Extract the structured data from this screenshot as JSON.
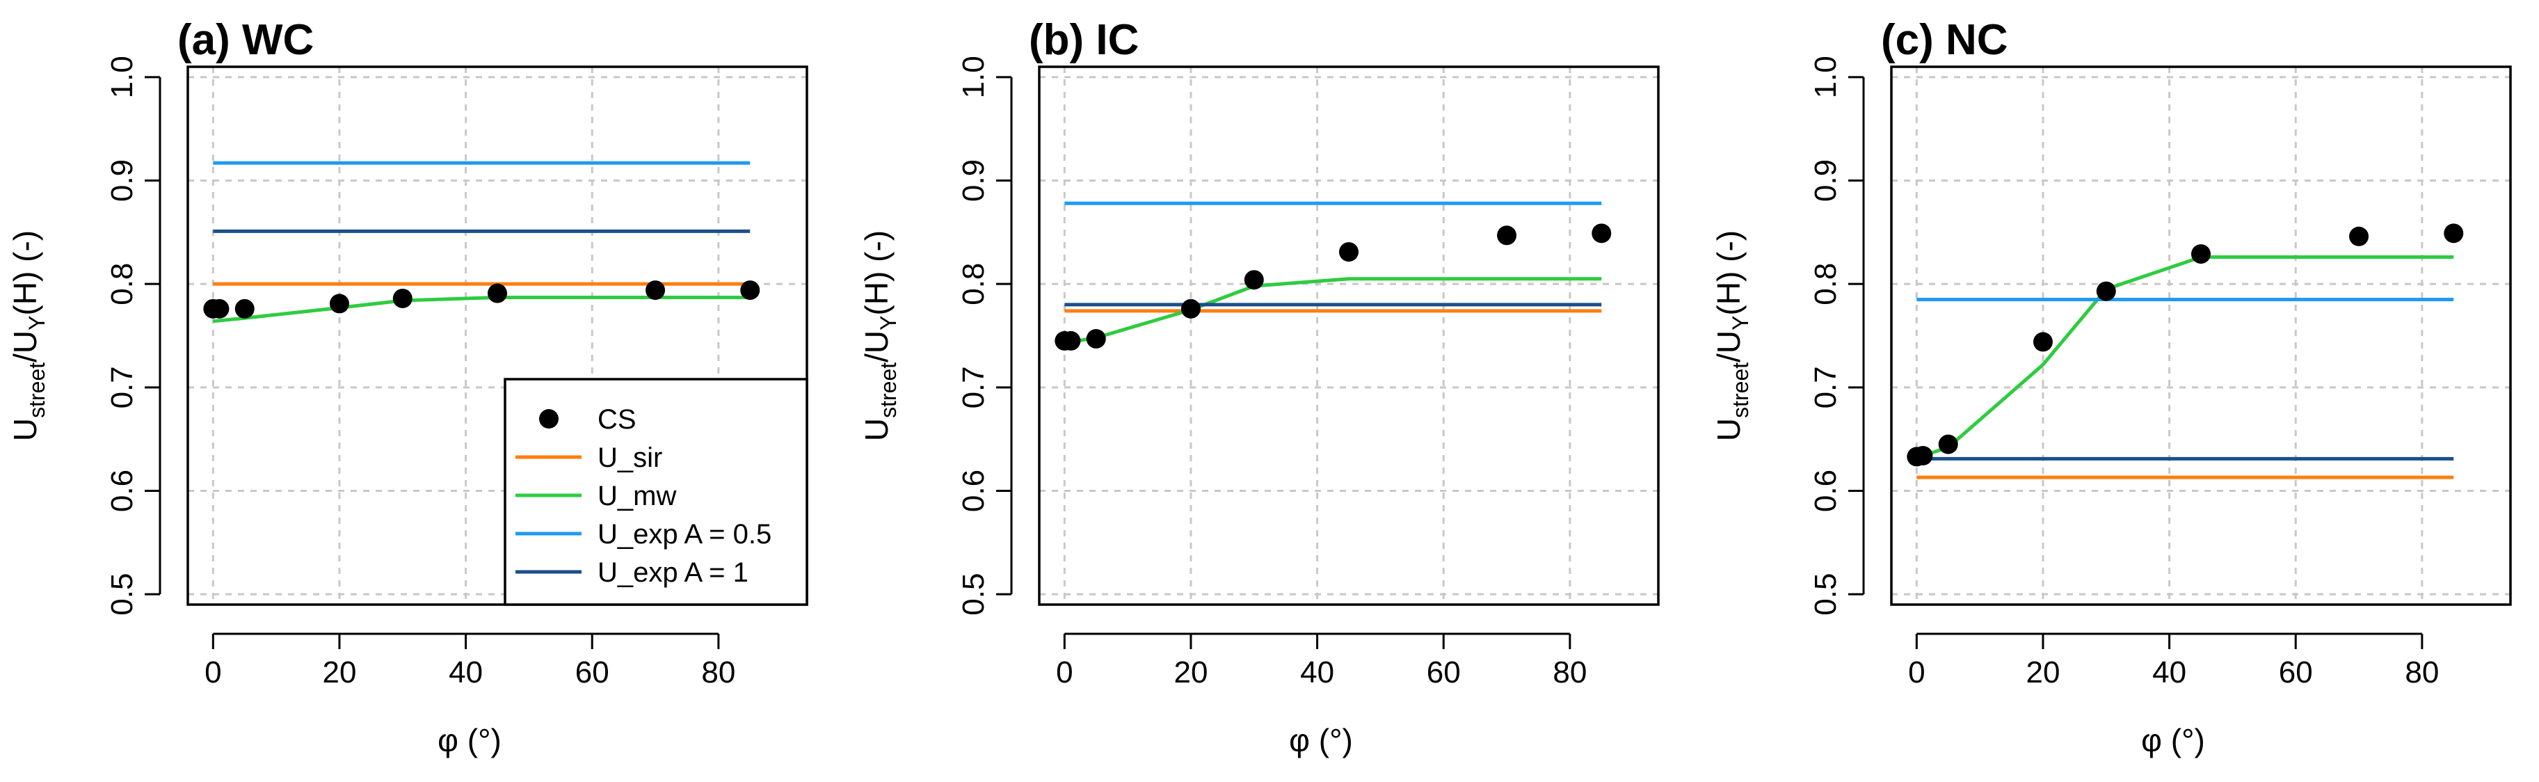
{
  "chart_data": [
    {
      "type": "line",
      "title": "(a) WC",
      "xlabel": "φ (°)",
      "ylabel_main": "U",
      "ylabel_sub": "street",
      "ylabel_mid": "/U",
      "ylabel_sub2": "Y",
      "ylabel_tail": "(H) (-)",
      "xlim": [
        -4,
        94
      ],
      "ylim": [
        0.49,
        1.01
      ],
      "xticks": [
        "0",
        "20",
        "40",
        "60",
        "80"
      ],
      "yticks": [
        "0.5",
        "0.6",
        "0.7",
        "0.8",
        "0.9",
        "1.0"
      ],
      "grid": true,
      "legend_position": "bottom-right",
      "series": [
        {
          "name": "CS",
          "kind": "points",
          "color": "#000000",
          "x": [
            0,
            1,
            5,
            20,
            30,
            45,
            70,
            85
          ],
          "y": [
            0.776,
            0.776,
            0.776,
            0.781,
            0.786,
            0.791,
            0.794,
            0.794
          ]
        },
        {
          "name": "U_sir",
          "kind": "line",
          "color": "#ff7f0e",
          "x": [
            0,
            85
          ],
          "y": [
            0.8,
            0.8
          ]
        },
        {
          "name": "U_mw",
          "kind": "line",
          "color": "#2ecc40",
          "x": [
            0,
            5,
            20,
            30,
            45,
            70,
            85
          ],
          "y": [
            0.764,
            0.767,
            0.777,
            0.784,
            0.787,
            0.787,
            0.787
          ]
        },
        {
          "name": "U_exp A = 0.5",
          "kind": "line",
          "color": "#1f9bf0",
          "x": [
            0,
            85
          ],
          "y": [
            0.917,
            0.917
          ]
        },
        {
          "name": "U_exp A = 1",
          "kind": "line",
          "color": "#1b4f8a",
          "x": [
            0,
            85
          ],
          "y": [
            0.851,
            0.851
          ]
        }
      ]
    },
    {
      "type": "line",
      "title": "(b) IC",
      "xlabel": "φ (°)",
      "ylabel_main": "U",
      "ylabel_sub": "street",
      "ylabel_mid": "/U",
      "ylabel_sub2": "Y",
      "ylabel_tail": "(H) (-)",
      "xlim": [
        -4,
        94
      ],
      "ylim": [
        0.49,
        1.01
      ],
      "xticks": [
        "0",
        "20",
        "40",
        "60",
        "80"
      ],
      "yticks": [
        "0.5",
        "0.6",
        "0.7",
        "0.8",
        "0.9",
        "1.0"
      ],
      "grid": true,
      "series": [
        {
          "name": "CS",
          "kind": "points",
          "color": "#000000",
          "x": [
            0,
            1,
            5,
            20,
            30,
            45,
            70,
            85
          ],
          "y": [
            0.745,
            0.745,
            0.747,
            0.776,
            0.804,
            0.831,
            0.847,
            0.849
          ]
        },
        {
          "name": "U_sir",
          "kind": "line",
          "color": "#ff7f0e",
          "x": [
            0,
            85
          ],
          "y": [
            0.774,
            0.774
          ]
        },
        {
          "name": "U_mw",
          "kind": "line",
          "color": "#2ecc40",
          "x": [
            0,
            5,
            20,
            30,
            45,
            70,
            85
          ],
          "y": [
            0.743,
            0.748,
            0.775,
            0.798,
            0.805,
            0.805,
            0.805
          ]
        },
        {
          "name": "U_exp A = 0.5",
          "kind": "line",
          "color": "#1f9bf0",
          "x": [
            0,
            85
          ],
          "y": [
            0.878,
            0.878
          ]
        },
        {
          "name": "U_exp A = 1",
          "kind": "line",
          "color": "#1b4f8a",
          "x": [
            0,
            85
          ],
          "y": [
            0.78,
            0.78
          ]
        }
      ]
    },
    {
      "type": "line",
      "title": "(c) NC",
      "xlabel": "φ (°)",
      "ylabel_main": "U",
      "ylabel_sub": "street",
      "ylabel_mid": "/U",
      "ylabel_sub2": "Y",
      "ylabel_tail": "(H) (-)",
      "xlim": [
        -4,
        94
      ],
      "ylim": [
        0.49,
        1.01
      ],
      "xticks": [
        "0",
        "20",
        "40",
        "60",
        "80"
      ],
      "yticks": [
        "0.5",
        "0.6",
        "0.7",
        "0.8",
        "0.9",
        "1.0"
      ],
      "grid": true,
      "series": [
        {
          "name": "CS",
          "kind": "points",
          "color": "#000000",
          "x": [
            0,
            1,
            5,
            20,
            30,
            45,
            70,
            85
          ],
          "y": [
            0.633,
            0.634,
            0.645,
            0.744,
            0.793,
            0.829,
            0.846,
            0.849
          ]
        },
        {
          "name": "U_sir",
          "kind": "line",
          "color": "#ff7f0e",
          "x": [
            0,
            85
          ],
          "y": [
            0.613,
            0.613
          ]
        },
        {
          "name": "U_mw",
          "kind": "line",
          "color": "#2ecc40",
          "x": [
            0,
            5,
            20,
            30,
            45,
            70,
            85
          ],
          "y": [
            0.632,
            0.642,
            0.722,
            0.795,
            0.826,
            0.826,
            0.826
          ]
        },
        {
          "name": "U_exp A = 0.5",
          "kind": "line",
          "color": "#1f9bf0",
          "x": [
            0,
            85
          ],
          "y": [
            0.785,
            0.785
          ]
        },
        {
          "name": "U_exp A = 1",
          "kind": "line",
          "color": "#1b4f8a",
          "x": [
            0,
            85
          ],
          "y": [
            0.631,
            0.631
          ]
        }
      ]
    }
  ]
}
